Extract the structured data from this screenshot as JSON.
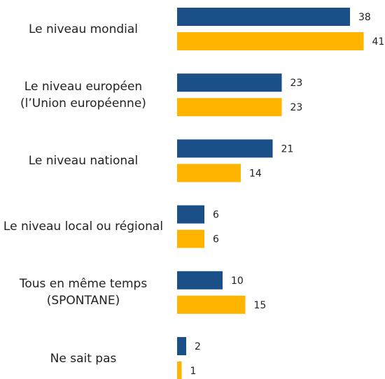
{
  "chart_data": {
    "type": "bar",
    "orientation": "horizontal",
    "categories": [
      "Le niveau mondial",
      "Le niveau européen\n(l’Union européenne)",
      "Le niveau national",
      "Le niveau local ou régional",
      "Tous en même temps\n(SPONTANE)",
      "Ne sait pas"
    ],
    "series": [
      {
        "color": "#1b4f87",
        "values": [
          38,
          23,
          21,
          6,
          10,
          2
        ]
      },
      {
        "color": "#ffb400",
        "values": [
          41,
          23,
          14,
          6,
          15,
          1
        ]
      }
    ]
  }
}
